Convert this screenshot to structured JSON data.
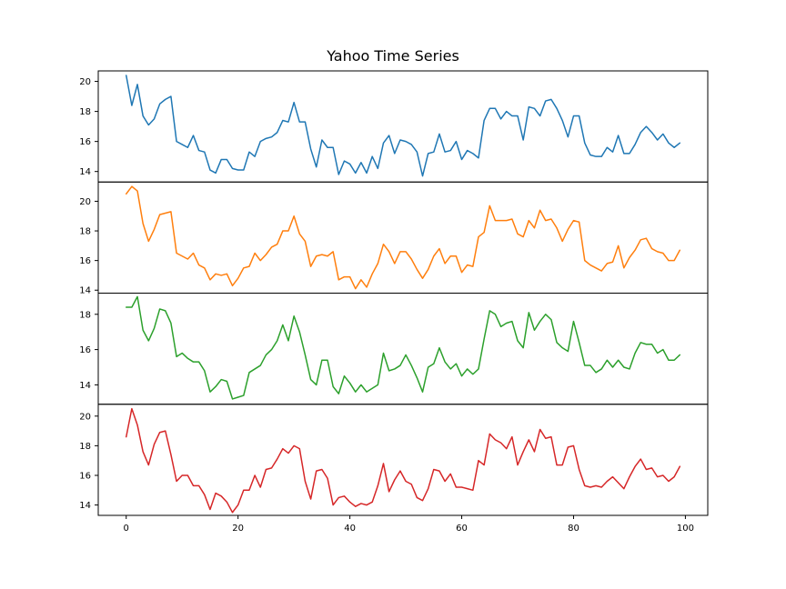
{
  "chart_data": {
    "type": "line",
    "title": "Yahoo Time Series",
    "xlabel": "",
    "ylabel": "",
    "xlim": [
      -5,
      104
    ],
    "x_ticks": [
      0,
      20,
      40,
      60,
      80,
      100
    ],
    "grid": false,
    "legend": "none",
    "x": [
      0,
      1,
      2,
      3,
      4,
      5,
      6,
      7,
      8,
      9,
      10,
      11,
      12,
      13,
      14,
      15,
      16,
      17,
      18,
      19,
      20,
      21,
      22,
      23,
      24,
      25,
      26,
      27,
      28,
      29,
      30,
      31,
      32,
      33,
      34,
      35,
      36,
      37,
      38,
      39,
      40,
      41,
      42,
      43,
      44,
      45,
      46,
      47,
      48,
      49,
      50,
      51,
      52,
      53,
      54,
      55,
      56,
      57,
      58,
      59,
      60,
      61,
      62,
      63,
      64,
      65,
      66,
      67,
      68,
      69,
      70,
      71,
      72,
      73,
      74,
      75,
      76,
      77,
      78,
      79,
      80,
      81,
      82,
      83,
      84,
      85,
      86,
      87,
      88,
      89,
      90,
      91,
      92,
      93,
      94,
      95,
      96,
      97,
      98,
      99
    ],
    "series": [
      {
        "color": "#1f77b4",
        "ylim": [
          13.3,
          20.7
        ],
        "y_ticks": [
          14,
          16,
          18,
          20
        ],
        "values": [
          20.4,
          18.4,
          19.8,
          17.7,
          17.1,
          17.5,
          18.5,
          18.8,
          19.0,
          16.0,
          15.8,
          15.6,
          16.4,
          15.4,
          15.3,
          14.1,
          13.9,
          14.8,
          14.8,
          14.2,
          14.1,
          14.1,
          15.3,
          15.0,
          16.0,
          16.2,
          16.3,
          16.6,
          17.4,
          17.3,
          18.6,
          17.3,
          17.3,
          15.5,
          14.3,
          16.1,
          15.6,
          15.6,
          13.8,
          14.7,
          14.5,
          13.9,
          14.6,
          13.9,
          15.0,
          14.2,
          15.9,
          16.4,
          15.2,
          16.1,
          16.0,
          15.8,
          15.3,
          13.7,
          15.2,
          15.3,
          16.5,
          15.3,
          15.4,
          16.0,
          14.8,
          15.4,
          15.2,
          14.9,
          17.4,
          18.2,
          18.2,
          17.5,
          18.0,
          17.7,
          17.7,
          16.1,
          18.3,
          18.2,
          17.7,
          18.7,
          18.8,
          18.2,
          17.4,
          16.3,
          17.7,
          17.7,
          15.9,
          15.1,
          15.0,
          15.0,
          15.6,
          15.3,
          16.4,
          15.2,
          15.2,
          15.8,
          16.6,
          17.0,
          16.6,
          16.1,
          16.5,
          15.9,
          15.6,
          15.9
        ]
      },
      {
        "color": "#ff7f0e",
        "ylim": [
          13.8,
          21.3
        ],
        "y_ticks": [
          14,
          16,
          18,
          20
        ],
        "values": [
          20.5,
          21.0,
          20.7,
          18.5,
          17.3,
          18.1,
          19.1,
          19.2,
          19.3,
          16.5,
          16.3,
          16.1,
          16.5,
          15.7,
          15.5,
          14.7,
          15.1,
          15.0,
          15.1,
          14.3,
          14.8,
          15.5,
          15.6,
          16.5,
          16.0,
          16.4,
          16.9,
          17.1,
          18.0,
          18.0,
          19.0,
          17.8,
          17.3,
          15.6,
          16.3,
          16.4,
          16.3,
          16.6,
          14.7,
          14.9,
          14.9,
          14.1,
          14.7,
          14.2,
          15.1,
          15.8,
          17.1,
          16.6,
          15.8,
          16.6,
          16.6,
          16.1,
          15.4,
          14.8,
          15.4,
          16.3,
          16.8,
          15.8,
          16.3,
          16.3,
          15.2,
          15.7,
          15.6,
          17.6,
          17.9,
          19.7,
          18.7,
          18.7,
          18.7,
          18.8,
          17.8,
          17.6,
          18.7,
          18.2,
          19.4,
          18.7,
          18.8,
          18.2,
          17.3,
          18.1,
          18.7,
          18.6,
          16.0,
          15.7,
          15.5,
          15.3,
          15.8,
          15.9,
          17.0,
          15.5,
          16.2,
          16.7,
          17.4,
          17.5,
          16.8,
          16.6,
          16.5,
          16.0,
          16.0,
          16.7
        ]
      },
      {
        "color": "#2ca02c",
        "ylim": [
          12.9,
          19.2
        ],
        "y_ticks": [
          14,
          16,
          18
        ],
        "values": [
          18.4,
          18.4,
          19.0,
          17.1,
          16.5,
          17.2,
          18.3,
          18.2,
          17.5,
          15.6,
          15.8,
          15.5,
          15.3,
          15.3,
          14.8,
          13.6,
          13.9,
          14.3,
          14.2,
          13.2,
          13.3,
          13.4,
          14.7,
          14.9,
          15.1,
          15.7,
          16.0,
          16.5,
          17.4,
          16.5,
          17.9,
          17.0,
          15.7,
          14.3,
          14.0,
          15.4,
          15.4,
          13.9,
          13.5,
          14.5,
          14.1,
          13.6,
          14.0,
          13.6,
          13.8,
          14.0,
          15.8,
          14.8,
          14.9,
          15.1,
          15.7,
          15.1,
          14.4,
          13.6,
          15.0,
          15.2,
          16.1,
          15.3,
          14.9,
          15.2,
          14.5,
          14.9,
          14.6,
          14.9,
          16.6,
          18.2,
          18.0,
          17.3,
          17.5,
          17.6,
          16.5,
          16.1,
          18.1,
          17.1,
          17.6,
          18.0,
          17.7,
          16.4,
          16.1,
          15.9,
          17.6,
          16.4,
          15.1,
          15.1,
          14.7,
          14.9,
          15.4,
          15.0,
          15.4,
          15.0,
          14.9,
          15.8,
          16.4,
          16.3,
          16.3,
          15.8,
          16.0,
          15.4,
          15.4,
          15.7
        ]
      },
      {
        "color": "#d62728",
        "ylim": [
          13.3,
          20.8
        ],
        "y_ticks": [
          14,
          16,
          18,
          20
        ],
        "values": [
          18.6,
          20.5,
          19.4,
          17.6,
          16.7,
          18.1,
          18.9,
          19.0,
          17.4,
          15.6,
          16.0,
          16.0,
          15.3,
          15.3,
          14.7,
          13.7,
          14.8,
          14.6,
          14.2,
          13.5,
          14.0,
          15.0,
          15.0,
          16.0,
          15.2,
          16.4,
          16.5,
          17.1,
          17.8,
          17.5,
          18.0,
          17.8,
          15.6,
          14.4,
          16.3,
          16.4,
          15.8,
          14.0,
          14.5,
          14.6,
          14.2,
          13.9,
          14.1,
          14.0,
          14.2,
          15.3,
          16.8,
          14.9,
          15.7,
          16.3,
          15.6,
          15.4,
          14.5,
          14.3,
          15.1,
          16.4,
          16.3,
          15.6,
          16.1,
          15.2,
          15.2,
          15.1,
          15.0,
          17.0,
          16.7,
          18.8,
          18.4,
          18.2,
          17.8,
          18.6,
          16.7,
          17.6,
          18.4,
          17.6,
          19.1,
          18.5,
          18.6,
          16.7,
          16.7,
          17.9,
          18.0,
          16.4,
          15.3,
          15.2,
          15.3,
          15.2,
          15.6,
          15.9,
          15.5,
          15.1,
          15.9,
          16.6,
          17.1,
          16.4,
          16.5,
          15.9,
          16.0,
          15.6,
          15.9,
          16.6
        ]
      }
    ]
  }
}
